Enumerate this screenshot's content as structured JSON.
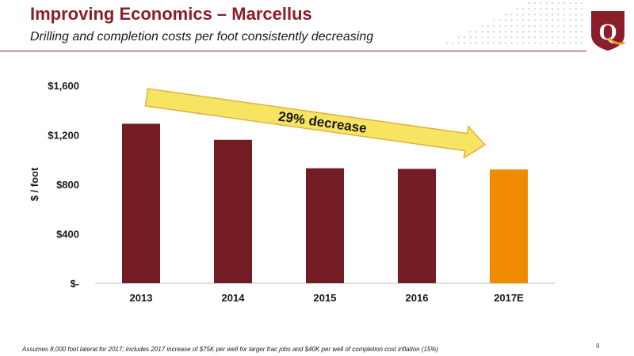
{
  "slide": {
    "title": "Improving Economics – Marcellus",
    "subtitle": "Drilling and completion costs per foot consistently decreasing",
    "footnote": "Assumes 8,000 foot lateral for 2017; includes 2017 increase of $75K per well for larger frac jobs and $40K per well of completion cost inflation (15%)",
    "page_number": "8",
    "logo_letter": "Q"
  },
  "colors": {
    "brand": "#8c1d2a",
    "bar": "#731c24",
    "bar_estimate": "#f08a00",
    "arrow_fill": "#f7e463",
    "arrow_stroke": "#e0b23b",
    "logo_accent": "#f0a020"
  },
  "chart_data": {
    "type": "bar",
    "categories": [
      "2013",
      "2014",
      "2015",
      "2016",
      "2017E"
    ],
    "values": [
      1290,
      1160,
      930,
      925,
      920
    ],
    "highlight_category": "2017E",
    "ylabel": "$ / foot",
    "ylim": [
      0,
      1600
    ],
    "yticks": [
      0,
      400,
      800,
      1200,
      1600
    ],
    "ytick_labels": [
      "$-",
      "$400",
      "$800",
      "$1,200",
      "$1,600"
    ],
    "grid": false,
    "annotation": {
      "text": "29% decrease",
      "type": "arrow"
    }
  }
}
